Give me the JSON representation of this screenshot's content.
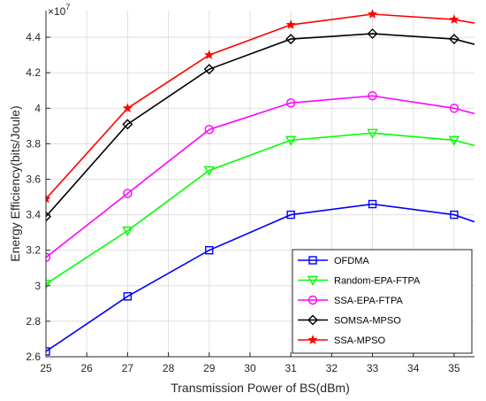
{
  "chart_data": {
    "type": "line",
    "xlabel": "Transmission Power of BS(dBm)",
    "ylabel": "Energy Efficiency(bits/Joule)",
    "y_exponent_label": "×10",
    "y_exponent_power": "7",
    "xlim": [
      25,
      35.5
    ],
    "ylim": [
      2.6,
      4.55
    ],
    "x_ticks": [
      25,
      26,
      27,
      28,
      29,
      30,
      31,
      32,
      33,
      34,
      35
    ],
    "x_tick_labels": [
      "25",
      "26",
      "27",
      "28",
      "29",
      "30",
      "31",
      "32",
      "33",
      "34",
      "35"
    ],
    "y_ticks": [
      2.6,
      2.8,
      3.0,
      3.2,
      3.4,
      3.6,
      3.8,
      4.0,
      4.2,
      4.4
    ],
    "y_tick_labels": [
      "2.6",
      "2.8",
      "3",
      "3.2",
      "3.4",
      "3.6",
      "3.8",
      "4",
      "4.2",
      "4.4"
    ],
    "grid": true,
    "legend_position": "lower-right",
    "series": [
      {
        "name": "OFDMA",
        "color": "#0000ff",
        "marker": "square",
        "x": [
          25,
          27,
          29,
          31,
          33,
          35,
          35.5
        ],
        "y": [
          2.63,
          2.94,
          3.2,
          3.4,
          3.46,
          3.4,
          3.36
        ]
      },
      {
        "name": "Random-EPA-FTPA",
        "color": "#00ff00",
        "marker": "triangle-down",
        "x": [
          25,
          27,
          29,
          31,
          33,
          35,
          35.5
        ],
        "y": [
          3.01,
          3.31,
          3.65,
          3.82,
          3.86,
          3.82,
          3.79
        ]
      },
      {
        "name": "SSA-EPA-FTPA",
        "color": "#ff00ff",
        "marker": "circle",
        "x": [
          25,
          27,
          29,
          31,
          33,
          35,
          35.5
        ],
        "y": [
          3.16,
          3.52,
          3.88,
          4.03,
          4.07,
          4.0,
          3.97
        ]
      },
      {
        "name": "SOMSA-MPSO",
        "color": "#000000",
        "marker": "diamond",
        "x": [
          25,
          27,
          29,
          31,
          33,
          35,
          35.5
        ],
        "y": [
          3.39,
          3.91,
          4.22,
          4.39,
          4.42,
          4.39,
          4.36
        ]
      },
      {
        "name": "SSA-MPSO",
        "color": "#ff0000",
        "marker": "star",
        "x": [
          25,
          27,
          29,
          31,
          33,
          35,
          35.5
        ],
        "y": [
          3.49,
          4.0,
          4.3,
          4.47,
          4.53,
          4.5,
          4.48
        ]
      }
    ]
  }
}
